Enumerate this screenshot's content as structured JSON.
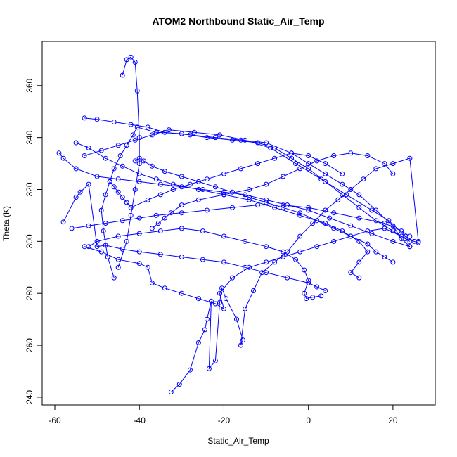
{
  "chart_data": {
    "type": "scatter",
    "title": "ATOM2 Northbound Static_Air_Temp",
    "xlabel": "Static_Air_Temp",
    "ylabel": "Theta (K)",
    "xlim": [
      -63,
      30
    ],
    "ylim": [
      237,
      377
    ],
    "xticks": [
      -60,
      -40,
      -20,
      0,
      20
    ],
    "yticks": [
      240,
      260,
      280,
      300,
      320,
      340,
      360
    ],
    "series_color": "#0000ff",
    "marker": "open-circle",
    "connected": true,
    "series": [
      {
        "points": [
          [
            -32.5,
            242
          ],
          [
            -30.5,
            245
          ],
          [
            -28,
            250.5
          ],
          [
            -26,
            261
          ],
          [
            -24.5,
            266
          ],
          [
            -24,
            270
          ],
          [
            -23,
            277
          ],
          [
            -23.5,
            251
          ],
          [
            -22,
            254
          ],
          [
            -21,
            276.5
          ],
          [
            -20.5,
            282
          ],
          [
            -19.5,
            278
          ],
          [
            -17,
            270
          ],
          [
            -15.5,
            262
          ],
          [
            -16,
            260
          ],
          [
            -15,
            274
          ],
          [
            -13,
            281
          ],
          [
            -11,
            288
          ],
          [
            -8,
            292
          ],
          [
            -5,
            296
          ],
          [
            -2,
            302
          ],
          [
            1,
            307
          ],
          [
            4,
            312
          ],
          [
            7,
            316
          ],
          [
            10,
            320
          ],
          [
            13,
            324
          ],
          [
            16,
            328
          ],
          [
            20,
            330
          ],
          [
            24,
            332
          ],
          [
            26,
            300
          ]
        ]
      },
      {
        "points": [
          [
            -46,
            286
          ],
          [
            -47.5,
            294
          ],
          [
            -48.5,
            304
          ],
          [
            -49,
            312
          ],
          [
            -48,
            318
          ],
          [
            -47,
            323
          ],
          [
            -46,
            328
          ],
          [
            -44.5,
            333
          ],
          [
            -43,
            337
          ],
          [
            -41.5,
            341
          ],
          [
            -40.5,
            344
          ],
          [
            -36,
            342
          ],
          [
            -30,
            341.5
          ],
          [
            -24,
            340
          ],
          [
            -18,
            339
          ],
          [
            -12,
            338
          ],
          [
            -8,
            336
          ],
          [
            -4,
            332
          ],
          [
            0,
            328
          ],
          [
            4,
            323
          ],
          [
            8,
            318
          ],
          [
            12,
            313
          ],
          [
            16,
            308
          ],
          [
            20,
            304
          ],
          [
            23,
            301
          ],
          [
            26,
            299.5
          ]
        ]
      },
      {
        "points": [
          [
            -59,
            334
          ],
          [
            -58,
            332
          ],
          [
            -55,
            328
          ],
          [
            -50,
            325
          ],
          [
            -45,
            324
          ],
          [
            -40,
            323
          ],
          [
            -35,
            322
          ],
          [
            -30,
            321
          ],
          [
            -25,
            320
          ],
          [
            -20,
            319
          ],
          [
            -15,
            318
          ],
          [
            -10,
            316
          ],
          [
            -5,
            314
          ],
          [
            0,
            312
          ],
          [
            5,
            309
          ],
          [
            10,
            306
          ],
          [
            15,
            303
          ],
          [
            20,
            300
          ],
          [
            24,
            298
          ]
        ]
      },
      {
        "points": [
          [
            -58,
            307.5
          ],
          [
            -55,
            317
          ],
          [
            -54,
            319
          ],
          [
            -52,
            322
          ],
          [
            -50,
            298
          ],
          [
            -48,
            298.5
          ],
          [
            -44,
            297
          ],
          [
            -40,
            296
          ],
          [
            -35,
            295
          ],
          [
            -30,
            294
          ],
          [
            -25,
            293
          ],
          [
            -20,
            292
          ],
          [
            -15,
            290
          ],
          [
            -10,
            288
          ],
          [
            -5,
            286
          ],
          [
            0,
            284
          ],
          [
            2,
            282.5
          ],
          [
            4,
            281
          ]
        ]
      },
      {
        "points": [
          [
            -44,
            364
          ],
          [
            -43,
            370
          ],
          [
            -42,
            371
          ],
          [
            -41,
            369
          ],
          [
            -40.5,
            358
          ],
          [
            -40,
            340
          ],
          [
            -40,
            330
          ],
          [
            -41,
            320
          ],
          [
            -42,
            310
          ],
          [
            -43,
            300
          ],
          [
            -45,
            290
          ]
        ]
      },
      {
        "points": [
          [
            -53,
            347.5
          ],
          [
            -50,
            347
          ],
          [
            -46,
            346
          ],
          [
            -42,
            345
          ],
          [
            -38,
            344
          ],
          [
            -34,
            342
          ],
          [
            -28,
            341
          ],
          [
            -22,
            340
          ],
          [
            -16,
            339
          ],
          [
            -10,
            338
          ],
          [
            -4,
            334
          ],
          [
            0,
            330
          ],
          [
            4,
            326
          ],
          [
            8,
            322
          ],
          [
            12,
            318
          ],
          [
            16,
            312
          ],
          [
            20,
            306
          ],
          [
            22,
            301
          ],
          [
            24,
            298
          ]
        ]
      },
      {
        "points": [
          [
            -55,
            338
          ],
          [
            -52,
            336
          ],
          [
            -48,
            332
          ],
          [
            -44,
            329
          ],
          [
            -40,
            326
          ],
          [
            -36,
            324
          ],
          [
            -32,
            322
          ],
          [
            -26,
            320
          ],
          [
            -20,
            318
          ],
          [
            -14,
            316
          ],
          [
            -8,
            313
          ],
          [
            -2,
            310
          ],
          [
            4,
            307
          ],
          [
            8,
            304
          ],
          [
            12,
            300
          ],
          [
            14,
            296
          ],
          [
            12,
            292
          ],
          [
            10,
            288
          ],
          [
            12,
            286
          ]
        ]
      },
      {
        "points": [
          [
            -52,
            298
          ],
          [
            -50,
            300
          ],
          [
            -45,
            302
          ],
          [
            -40,
            303
          ],
          [
            -35,
            304
          ],
          [
            -30,
            305
          ],
          [
            -25,
            304
          ],
          [
            -20,
            302
          ],
          [
            -15,
            300
          ],
          [
            -10,
            298
          ],
          [
            -6,
            296
          ],
          [
            -3,
            293
          ],
          [
            -1,
            289
          ],
          [
            0,
            285
          ],
          [
            -1,
            280
          ],
          [
            -0.5,
            278
          ],
          [
            1,
            278.5
          ],
          [
            3,
            279
          ]
        ]
      },
      {
        "points": [
          [
            -37,
            305
          ],
          [
            -35.5,
            307
          ],
          [
            -34,
            309
          ],
          [
            -32.5,
            311
          ],
          [
            -30,
            314
          ],
          [
            -26,
            316
          ],
          [
            -20,
            318
          ],
          [
            -14,
            320
          ],
          [
            -10,
            322
          ],
          [
            -6,
            325
          ],
          [
            -2,
            328
          ],
          [
            2,
            331
          ],
          [
            6,
            333
          ],
          [
            10,
            334
          ],
          [
            14,
            333
          ],
          [
            18,
            330
          ],
          [
            20,
            326
          ]
        ]
      },
      {
        "points": [
          [
            -53,
            298
          ],
          [
            -49,
            296
          ],
          [
            -45,
            293
          ],
          [
            -40,
            291.5
          ],
          [
            -38,
            290
          ],
          [
            -37,
            284
          ],
          [
            -34,
            282
          ],
          [
            -30,
            280
          ],
          [
            -26,
            278
          ],
          [
            -22,
            276
          ],
          [
            -20,
            274
          ],
          [
            -21,
            280
          ],
          [
            -18,
            286
          ],
          [
            -14,
            290
          ],
          [
            -10,
            292
          ],
          [
            -6,
            294
          ],
          [
            -2,
            296
          ],
          [
            2,
            298
          ],
          [
            6,
            300
          ],
          [
            10,
            302
          ],
          [
            14,
            304
          ],
          [
            18,
            305
          ],
          [
            22,
            302
          ],
          [
            24,
            300
          ]
        ]
      },
      {
        "points": [
          [
            -53,
            333
          ],
          [
            -49,
            335
          ],
          [
            -45,
            337
          ],
          [
            -41,
            339
          ],
          [
            -37,
            341
          ],
          [
            -33,
            343
          ],
          [
            -27,
            342
          ],
          [
            -21,
            341
          ],
          [
            -15,
            339
          ],
          [
            -9,
            336
          ],
          [
            -3,
            330
          ],
          [
            3,
            324
          ],
          [
            9,
            318
          ],
          [
            15,
            312
          ],
          [
            19,
            308
          ],
          [
            23,
            302
          ],
          [
            25,
            300
          ]
        ]
      },
      {
        "points": [
          [
            -56,
            305
          ],
          [
            -52,
            306
          ],
          [
            -48,
            307
          ],
          [
            -44,
            308
          ],
          [
            -40,
            309
          ],
          [
            -36,
            310
          ],
          [
            -30,
            311
          ],
          [
            -24,
            312
          ],
          [
            -18,
            313
          ],
          [
            -12,
            314
          ],
          [
            -6,
            314
          ],
          [
            0,
            313
          ],
          [
            6,
            311
          ],
          [
            12,
            309
          ],
          [
            18,
            307
          ],
          [
            22,
            304
          ],
          [
            24,
            302
          ]
        ]
      },
      {
        "points": [
          [
            -47,
            323
          ],
          [
            -46,
            321
          ],
          [
            -45,
            319
          ],
          [
            -44,
            317
          ],
          [
            -43,
            315
          ],
          [
            -42,
            313
          ],
          [
            -38,
            316
          ],
          [
            -35,
            318
          ],
          [
            -32,
            320
          ],
          [
            -28,
            322
          ],
          [
            -24,
            324
          ],
          [
            -20,
            326
          ],
          [
            -16,
            328
          ],
          [
            -12,
            330
          ],
          [
            -8,
            332
          ],
          [
            -4,
            334
          ],
          [
            0,
            333
          ],
          [
            4,
            330
          ],
          [
            8,
            326
          ]
        ]
      },
      {
        "points": [
          [
            -41,
            331
          ],
          [
            -40,
            332
          ],
          [
            -39,
            331
          ],
          [
            -37,
            329
          ],
          [
            -34,
            327
          ],
          [
            -30,
            325
          ],
          [
            -26,
            323
          ],
          [
            -22,
            321
          ],
          [
            -18,
            319
          ],
          [
            -14,
            317
          ],
          [
            -10,
            315
          ],
          [
            -6,
            313
          ],
          [
            -2,
            311
          ],
          [
            2,
            308
          ],
          [
            6,
            305
          ],
          [
            10,
            302
          ],
          [
            14,
            299
          ],
          [
            16,
            296
          ],
          [
            18,
            294
          ],
          [
            20,
            292
          ]
        ]
      }
    ]
  }
}
